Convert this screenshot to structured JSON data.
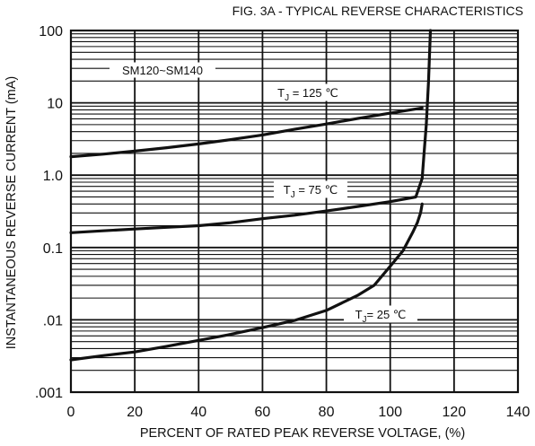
{
  "chart_data": {
    "type": "line",
    "title": "FIG. 3A - TYPICAL REVERSE CHARACTERISTICS",
    "xlabel": "PERCENT OF RATED PEAK REVERSE VOLTAGE, (%)",
    "ylabel": "INSTANTANEOUS REVERSE CURRENT (mA)",
    "xlim": [
      0,
      140
    ],
    "ylim": [
      0.001,
      100
    ],
    "yscale": "log",
    "grid": true,
    "x_ticks": [
      0,
      20,
      40,
      60,
      80,
      100,
      120,
      140
    ],
    "x_tick_labels": [
      "0",
      "20",
      "40",
      "60",
      "80",
      "100",
      "120",
      "140"
    ],
    "y_ticks": [
      100,
      10,
      1,
      0.1,
      0.01,
      0.001
    ],
    "y_tick_labels": [
      "100",
      "10",
      "1.0",
      "0.1",
      ".01",
      ".001"
    ],
    "device_label": "SM120~SM140",
    "series": [
      {
        "label_text": "T<sub>J</sub> = 125 ℃",
        "label_main": "T",
        "label_sub": "J",
        "label_rest": " = 125 ℃",
        "x": [
          0,
          10,
          20,
          30,
          40,
          50,
          60,
          70,
          80,
          90,
          100,
          110
        ],
        "y": [
          1.8,
          1.95,
          2.15,
          2.4,
          2.7,
          3.1,
          3.6,
          4.3,
          5.1,
          6.1,
          7.2,
          8.5
        ]
      },
      {
        "label_main": "T",
        "label_sub": "J",
        "label_rest": " = 75 ℃",
        "x": [
          0,
          10,
          20,
          30,
          40,
          50,
          60,
          70,
          80,
          90,
          100,
          108,
          110,
          110.6,
          111.3,
          112,
          112.6
        ],
        "y": [
          0.16,
          0.17,
          0.18,
          0.19,
          0.2,
          0.22,
          0.25,
          0.28,
          0.32,
          0.37,
          0.43,
          0.5,
          0.9,
          2,
          5,
          20,
          100
        ]
      },
      {
        "label_main": "T",
        "label_sub": "J",
        "label_rest": "= 25 ℃",
        "x": [
          0,
          10,
          20,
          30,
          40,
          50,
          60,
          70,
          80,
          90,
          95,
          100,
          104,
          107,
          108.5,
          109.5,
          110
        ],
        "y": [
          0.0028,
          0.0032,
          0.0036,
          0.0043,
          0.0052,
          0.0063,
          0.0078,
          0.0098,
          0.0135,
          0.022,
          0.03,
          0.055,
          0.09,
          0.16,
          0.22,
          0.3,
          0.4
        ]
      }
    ]
  }
}
